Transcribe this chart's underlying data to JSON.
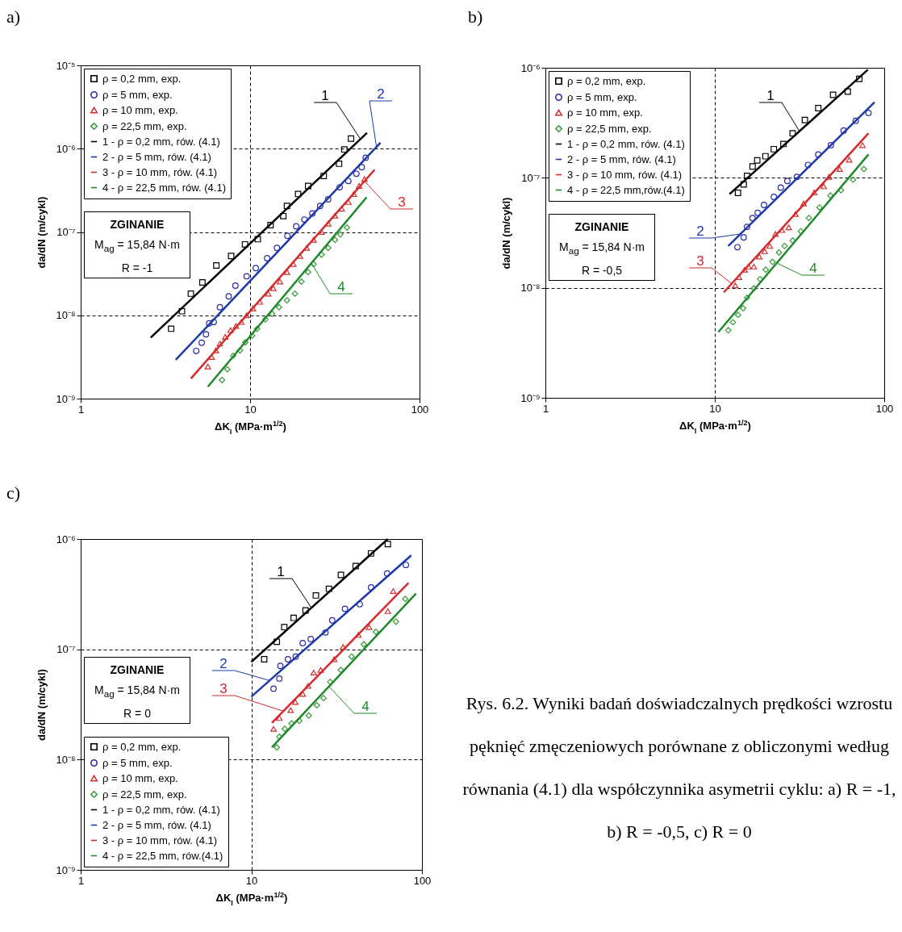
{
  "chart_data": [
    {
      "type": "scatter",
      "title": "a)",
      "xlabel": "ΔK$_{I}$ (MPa·m$^{1/2}$)",
      "ylabel": "da/dN (m/cykl)",
      "log": "xy",
      "grid": true,
      "legend": "top left",
      "xlim": [
        1,
        100
      ],
      "xticks": [
        1,
        10,
        100
      ],
      "ylim": [
        1e-09,
        1e-05
      ],
      "yticks": [
        {
          "value": 1e-09,
          "label": "10⁻⁹"
        },
        {
          "value": 1e-08,
          "label": "10⁻⁸"
        },
        {
          "value": 1e-07,
          "label": "10⁻⁷"
        },
        {
          "value": 1e-06,
          "label": "10⁻⁶"
        },
        {
          "value": 1e-05,
          "label": "10⁻⁵"
        }
      ],
      "series": [
        {
          "name": "ρ = 0,2 mm, exp.",
          "type": "scatter",
          "marker": "square",
          "color": "#000000",
          "x": [
            3.42,
            3.96,
            4.47,
            5.23,
            6.32,
            7.73,
            9.33,
            11.1,
            13.2,
            15.7,
            16.5,
            19.2,
            22.0,
            27.2,
            33.5,
            36.0,
            39.4
          ],
          "values": [
            6.9e-09,
            1.12e-08,
            1.82e-08,
            2.48e-08,
            3.97e-08,
            5.15e-08,
            7.1e-08,
            8.2e-08,
            1.21e-07,
            1.55e-07,
            2.05e-07,
            2.86e-07,
            3.57e-07,
            4.7e-07,
            6.6e-07,
            9.8e-07,
            1.32e-06
          ]
        },
        {
          "name": "ρ = 5 mm, exp.",
          "type": "scatter",
          "marker": "circle",
          "color": "#2a2aa0",
          "x": [
            4.81,
            5.18,
            5.49,
            5.73,
            6.1,
            6.63,
            7.48,
            8.19,
            9.54,
            10.8,
            12.6,
            14.4,
            16.6,
            18.7,
            20.9,
            23.3,
            25.9,
            28.9,
            33.8,
            38.0,
            42.4,
            45.6,
            48.1
          ],
          "values": [
            3.74e-09,
            4.68e-09,
            5.93e-09,
            8e-09,
            8.3e-09,
            1.25e-08,
            1.69e-08,
            2.27e-08,
            2.94e-08,
            3.68e-08,
            4.85e-08,
            6.44e-08,
            9e-08,
            1.17e-07,
            1.41e-07,
            1.67e-07,
            2.05e-07,
            2.47e-07,
            3.44e-07,
            4.09e-07,
            5e-07,
            6e-07,
            7.8e-07
          ]
        },
        {
          "name": "ρ = 10 mm, exp.",
          "type": "scatter",
          "marker": "triangle",
          "color": "#d03030",
          "x": [
            5.63,
            5.94,
            6.28,
            6.63,
            7.13,
            7.67,
            8.25,
            8.87,
            9.54,
            10.4,
            11.4,
            12.8,
            13.7,
            15.0,
            16.5,
            18.0,
            19.7,
            21.6,
            23.7,
            26.4,
            28.9,
            31.7,
            34.7,
            38.0,
            40.9,
            44.0,
            47.3
          ],
          "values": [
            2.43e-09,
            3.15e-09,
            3.79e-09,
            4.57e-09,
            5.51e-09,
            6.64e-09,
            7.43e-09,
            8.3e-09,
            1e-08,
            1.21e-08,
            1.45e-08,
            1.82e-08,
            2.11e-08,
            2.54e-08,
            3.3e-08,
            4.12e-08,
            5.15e-08,
            6.44e-08,
            8.05e-08,
            1e-07,
            1.26e-07,
            1.57e-07,
            1.9e-07,
            2.29e-07,
            2.86e-07,
            3.57e-07,
            4.31e-07
          ]
        },
        {
          "name": "ρ = 22,5 mm, exp.",
          "type": "scatter",
          "marker": "diamond",
          "color": "#3a9a3a",
          "x": [
            6.83,
            7.34,
            7.95,
            8.71,
            9.37,
            10.3,
            11.0,
            12.3,
            13.5,
            14.8,
            16.5,
            18.4,
            20.1,
            22.0,
            23.7,
            26.4,
            28.9,
            31.7,
            34.1,
            37.3
          ],
          "values": [
            1.67e-09,
            2.25e-09,
            3.27e-09,
            3.79e-09,
            4.74e-09,
            5.71e-09,
            6.89e-09,
            8.93e-09,
            1.04e-08,
            1.25e-08,
            1.51e-08,
            1.82e-08,
            2.54e-08,
            3.3e-08,
            4.12e-08,
            5.35e-08,
            6.44e-08,
            8.05e-08,
            9.35e-08,
            1.13e-07
          ]
        },
        {
          "name": "1 - ρ = 0,2 mm, rów. (4.1)",
          "type": "line",
          "color": "#000000",
          "x": [
            2.59,
            49.0
          ],
          "values": [
            5.4e-09,
            1.55e-06
          ]
        },
        {
          "name": "2 - ρ = 5 mm, rów. (4.1)",
          "type": "line",
          "color": "#1c3aa8",
          "x": [
            3.64,
            58.8
          ],
          "values": [
            2.92e-09,
            1.18e-06
          ]
        },
        {
          "name": "3 - ρ = 10 mm, rów. (4.1)",
          "type": "line",
          "color": "#d42a2a",
          "x": [
            4.47,
            54.3
          ],
          "values": [
            1.74e-09,
            5.6e-07
          ]
        },
        {
          "name": "4 - ρ = 22,5 mm, rów. (4.1)",
          "type": "line",
          "color": "#1f8a2a",
          "x": [
            5.63,
            48.7
          ],
          "values": [
            1.39e-09,
            2.61e-07
          ]
        }
      ],
      "annotations": [
        "ZGINANIE",
        "M$_{ag}$ = 15,84 N·m",
        "R = -1",
        {
          "text": "1",
          "x": 44.8,
          "y": 1.3e-06
        },
        {
          "text": "2",
          "x": 55.7,
          "y": 1.05e-06
        },
        {
          "text": "3",
          "x": 47.3,
          "y": 4.07e-07
        },
        {
          "text": "4",
          "x": 23.0,
          "y": 4.23e-08
        }
      ]
    },
    {
      "type": "scatter",
      "title": "b)",
      "xlabel": "ΔK$_{I}$ (MPa·m$^{1/2}$)",
      "ylabel": "da/dN (m/cykl)",
      "log": "xy",
      "grid": true,
      "legend": "top left",
      "xlim": [
        1,
        100
      ],
      "xticks": [
        1,
        10,
        100
      ],
      "ylim": [
        1e-09,
        1e-06
      ],
      "yticks": [
        {
          "value": 1e-09,
          "label": "10⁻⁹"
        },
        {
          "value": 1e-08,
          "label": "10⁻⁸"
        },
        {
          "value": 1e-07,
          "label": "10⁻⁷"
        },
        {
          "value": 1e-06,
          "label": "10⁻⁶"
        }
      ],
      "series": [
        {
          "name": "ρ = 0,2 mm, exp.",
          "type": "scatter",
          "marker": "square",
          "color": "#000000",
          "x": [
            13.7,
            14.8,
            15.5,
            16.7,
            17.8,
            19.9,
            22.3,
            25.4,
            28.8,
            34.0,
            40.8,
            49.9,
            60.9,
            71.2
          ],
          "values": [
            7.29e-08,
            8.71e-08,
            1.04e-07,
            1.27e-07,
            1.44e-07,
            1.57e-07,
            1.82e-07,
            2.03e-07,
            2.54e-07,
            3.35e-07,
            4.3e-07,
            5.68e-07,
            6.07e-07,
            7.92e-07
          ]
        },
        {
          "name": "ρ = 5 mm, exp.",
          "type": "scatter",
          "marker": "circle",
          "color": "#2a2aa0",
          "x": [
            13.6,
            14.8,
            15.5,
            16.7,
            17.9,
            19.5,
            22.3,
            24.5,
            26.8,
            30.5,
            35.5,
            40.8,
            48.4,
            57.6,
            67.9,
            80.7
          ],
          "values": [
            2.34e-08,
            2.87e-08,
            3.58e-08,
            4.31e-08,
            4.81e-08,
            5.67e-08,
            6.71e-08,
            8.15e-08,
            9.35e-08,
            1.02e-07,
            1.31e-07,
            1.63e-07,
            1.98e-07,
            2.69e-07,
            3.3e-07,
            3.89e-07
          ]
        },
        {
          "name": "ρ = 10 mm, exp.",
          "type": "scatter",
          "marker": "triangle",
          "color": "#d03030",
          "x": [
            13.2,
            13.9,
            15.0,
            15.8,
            17.0,
            18.3,
            19.7,
            21.1,
            22.8,
            24.9,
            27.3,
            29.9,
            33.4,
            38.6,
            43.9,
            47.2,
            54.6,
            62.1,
            74.4
          ],
          "values": [
            1.05e-08,
            1.25e-08,
            1.46e-08,
            1.56e-08,
            1.56e-08,
            1.92e-08,
            2.15e-08,
            2.4e-08,
            3.08e-08,
            3.35e-08,
            3.54e-08,
            4.68e-08,
            5.84e-08,
            7.37e-08,
            8.37e-08,
            1.02e-07,
            1.2e-07,
            1.46e-07,
            1.98e-07
          ]
        },
        {
          "name": "ρ = 22,5 mm, exp.",
          "type": "scatter",
          "marker": "diamond",
          "color": "#3a9a3a",
          "x": [
            12.0,
            12.8,
            13.7,
            14.7,
            15.5,
            17.0,
            18.5,
            20.0,
            21.9,
            23.9,
            25.8,
            28.8,
            32.2,
            35.9,
            41.5,
            48.1,
            55.6,
            65.5,
            75.8
          ],
          "values": [
            4.11e-09,
            4.86e-09,
            5.68e-09,
            6.52e-09,
            8.14e-09,
            9.89e-09,
            1.2e-08,
            1.46e-08,
            1.72e-08,
            2.09e-08,
            2.4e-08,
            2.69e-08,
            3.26e-08,
            4.31e-08,
            5.37e-08,
            6.9e-08,
            7.71e-08,
            9.62e-08,
            1.2e-07
          ]
        },
        {
          "name": "1 - ρ = 0,2 mm, rów. (4.1)",
          "type": "line",
          "color": "#000000",
          "x": [
            12.2,
            80.0
          ],
          "values": [
            7.09e-08,
            9.6e-07
          ]
        },
        {
          "name": "2 - ρ = 5 mm, rów. (4.1)",
          "type": "line",
          "color": "#1c3aa8",
          "x": [
            12.0,
            87.7
          ],
          "values": [
            2.4e-08,
            4.86e-07
          ]
        },
        {
          "name": "3 - ρ = 10 mm, rów. (4.1)",
          "type": "line",
          "color": "#d42a2a",
          "x": [
            11.3,
            80.7
          ],
          "values": [
            9.1e-09,
            2.54e-07
          ]
        },
        {
          "name": "4 - ρ = 22,5 mm,rów.(4.1)",
          "type": "line",
          "color": "#1f8a2a",
          "x": [
            10.5,
            80.7
          ],
          "values": [
            3.96e-09,
            1.63e-07
          ]
        }
      ],
      "annotations": [
        "ZGINANIE",
        "M$_{ag}$ = 15,84 N·m",
        "R = -0,5",
        {
          "text": "1",
          "x": 31.6,
          "y": 2.65e-07
        },
        {
          "text": "2",
          "x": 14.2,
          "y": 3.09e-08
        },
        {
          "text": "3",
          "x": 12.6,
          "y": 1.09e-08
        },
        {
          "text": "4",
          "x": 23.2,
          "y": 1.68e-08
        }
      ]
    },
    {
      "type": "scatter",
      "title": "c)",
      "xlabel": "ΔK$_{I}$ (MPa·m$^{1/2}$)",
      "ylabel": "da/dN (m/cykl)",
      "log": "xy",
      "grid": true,
      "legend": "bottom left",
      "xlim": [
        1,
        100
      ],
      "xticks": [
        1,
        10,
        100
      ],
      "ylim": [
        1e-09,
        1e-06
      ],
      "yticks": [
        {
          "value": 1e-09,
          "label": "10⁻⁹"
        },
        {
          "value": 1e-08,
          "label": "10⁻⁸"
        },
        {
          "value": 1e-07,
          "label": "10⁻⁷"
        },
        {
          "value": 1e-06,
          "label": "10⁻⁶"
        }
      ],
      "series": [
        {
          "name": "ρ = 0,2 mm, exp.",
          "type": "scatter",
          "marker": "square",
          "color": "#000000",
          "x": [
            11.9,
            14.1,
            15.6,
            17.7,
            20.8,
            23.9,
            28.5,
            33.5,
            40.9,
            50.3,
            63.1
          ],
          "values": [
            8.13e-08,
            1.17e-07,
            1.59e-07,
            1.93e-07,
            2.25e-07,
            3.08e-07,
            3.54e-07,
            4.73e-07,
            5.69e-07,
            7.4e-07,
            9e-07
          ]
        },
        {
          "name": "ρ = 5 mm, exp.",
          "type": "scatter",
          "marker": "circle",
          "color": "#2a2aa0",
          "x": [
            13.5,
            14.6,
            14.8,
            16.4,
            18.2,
            20.0,
            22.3,
            27.2,
            29.8,
            35.4,
            43.2,
            50.3,
            62.5,
            80.5
          ],
          "values": [
            4.4e-08,
            5.43e-08,
            7.07e-08,
            8.13e-08,
            8.59e-08,
            1.14e-07,
            1.24e-07,
            1.42e-07,
            1.83e-07,
            2.33e-07,
            2.56e-07,
            3.64e-07,
            4.86e-07,
            5.82e-07
          ]
        },
        {
          "name": "ρ = 10 mm, exp.",
          "type": "scatter",
          "marker": "triangle",
          "color": "#d03030",
          "x": [
            13.5,
            14.6,
            17.0,
            18.1,
            20.0,
            21.5,
            23.2,
            25.5,
            30.6,
            34.5,
            42.4,
            49.0,
            63.1,
            67.9
          ],
          "values": [
            1.9e-08,
            2.38e-08,
            2.81e-08,
            3.33e-08,
            3.94e-08,
            4.65e-08,
            6.15e-08,
            6.5e-08,
            8.13e-08,
            1.05e-07,
            1.35e-07,
            1.59e-07,
            2.22e-07,
            3.38e-07
          ]
        },
        {
          "name": "ρ = 22,5 mm, exp.",
          "type": "scatter",
          "marker": "diamond",
          "color": "#3a9a3a",
          "x": [
            14.1,
            14.6,
            15.7,
            17.2,
            19.1,
            21.7,
            24.2,
            26.5,
            29.0,
            33.5,
            38.7,
            45.6,
            53.7,
            70.4,
            79.9
          ],
          "values": [
            1.29e-08,
            1.61e-08,
            1.9e-08,
            2.13e-08,
            2.25e-08,
            2.51e-08,
            3.11e-08,
            3.61e-08,
            5.06e-08,
            6.5e-08,
            8.59e-08,
            1.11e-07,
            1.44e-07,
            1.78e-07,
            2.86e-07
          ]
        },
        {
          "name": "1 - ρ = 0,2 mm, rów. (4.1)",
          "type": "line",
          "color": "#000000",
          "x": [
            10.0,
            63.1
          ],
          "values": [
            7.69e-08,
            1e-06
          ]
        },
        {
          "name": "2 - ρ = 5 mm, rów. (4.1)",
          "type": "line",
          "color": "#1c3aa8",
          "x": [
            10.0,
            86.5
          ],
          "values": [
            3.72e-08,
            7.11e-07
          ]
        },
        {
          "name": "3 - ρ = 10 mm, rów. (4.1)",
          "type": "line",
          "color": "#d42a2a",
          "x": [
            13.2,
            83.4
          ],
          "values": [
            2.15e-08,
            4e-07
          ]
        },
        {
          "name": "4 - ρ = 22,5 mm, rów.(4.1)",
          "type": "line",
          "color": "#1f8a2a",
          "x": [
            13.2,
            92.3
          ],
          "values": [
            1.29e-08,
            3.2e-07
          ]
        }
      ],
      "annotations": [
        "ZGINANIE",
        "M$_{ag}$ = 15,84 N·m",
        "R = 0",
        {
          "text": "1",
          "x": 22.5,
          "y": 2.38e-07
        },
        {
          "text": "2",
          "x": 12.8,
          "y": 5.21e-08
        },
        {
          "text": "3",
          "x": 15.4,
          "y": 2.75e-08
        },
        {
          "text": "4",
          "x": 28.5,
          "y": 4.6e-08
        }
      ]
    },
    {
      "type": "other",
      "annotations": [
        "Rys. 6.2. Wyniki badań doświadczalnych prędkości wzrostu pęknięć zmęczeniowych porównane z obliczonymi według równania (4.1) dla współczynnika asymetrii cyklu: a) R = -1, b) R = -0,5, c) R = 0"
      ]
    }
  ]
}
